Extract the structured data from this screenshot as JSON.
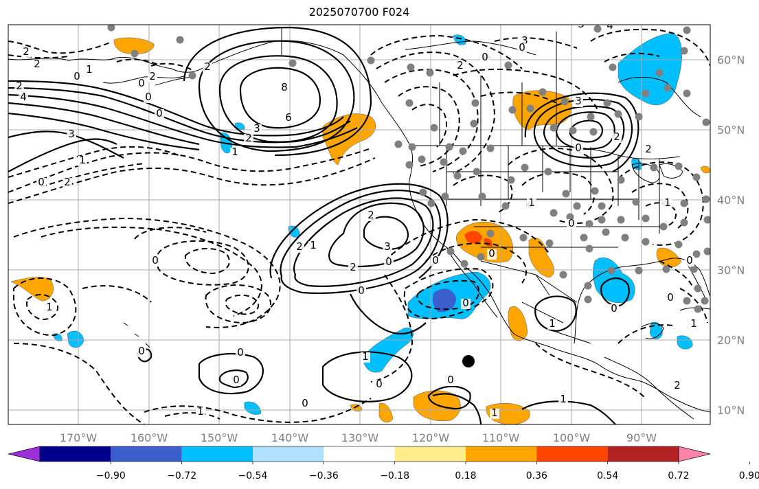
{
  "title": "2025070700 F024",
  "longitude_labels": [
    "170°W",
    "160°W",
    "150°W",
    "140°W",
    "130°W",
    "120°W",
    "110°W",
    "100°W",
    "90°W"
  ],
  "latitude_labels": [
    "60°N",
    "50°N",
    "40°N",
    "30°N",
    "20°N",
    "10°N"
  ],
  "colorbar": {
    "tick_labels": [
      "−0.90",
      "−0.72",
      "−0.54",
      "−0.36",
      "−0.18",
      "0.18",
      "0.36",
      "0.54",
      "0.72",
      "0.90"
    ],
    "colors": [
      "#9b30d9",
      "#00008b",
      "#3a5fcd",
      "#00bfff",
      "#b0e2ff",
      "#ffffff",
      "#ffec8b",
      "#ffa500",
      "#ff4500",
      "#b22222",
      "#ff82ab"
    ]
  },
  "fill_colors": {
    "neg_light": "#00bfff",
    "neg_dark": "#3a5fcd",
    "pos_light": "#ffa500",
    "pos_dark": "#ff4500"
  },
  "contour_labels": [
    "2",
    "2",
    "1",
    "4",
    "2",
    "2",
    "3",
    "1",
    "2",
    "8",
    "6",
    "3",
    "2",
    "2",
    "1",
    "0",
    "0",
    "0",
    "0",
    "1",
    "0",
    "0",
    "1",
    "0",
    "3",
    "2",
    "0",
    "2",
    "1",
    "2",
    "0",
    "1",
    "0",
    "0",
    "1",
    "1",
    "0",
    "0",
    "0",
    "3",
    "4",
    "3",
    "2",
    "0",
    "1",
    "2",
    "1",
    "0",
    "1",
    "0",
    "2",
    "0",
    "1",
    "0",
    "0",
    "3",
    "2",
    "0",
    "0",
    "0",
    "0"
  ]
}
